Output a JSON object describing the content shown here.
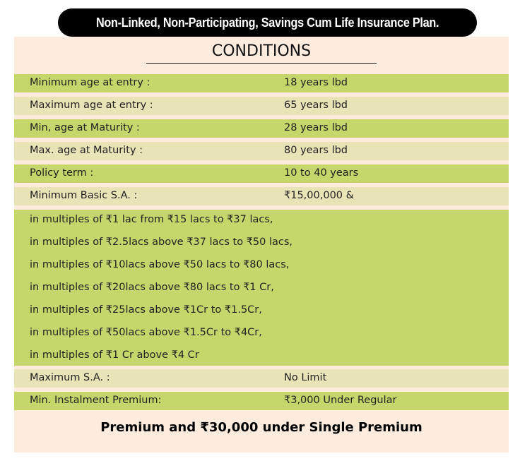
{
  "banner": "Non-Linked, Non-Participating, Savings Cum Life Insurance Plan.",
  "title": "CONDITIONS",
  "rows": [
    {
      "label": "Minimum age at entry :",
      "value": "18 years lbd"
    },
    {
      "label": "Maximum age at entry :",
      "value": "65 years lbd"
    },
    {
      "label": "Min, age at Maturity :",
      "value": "28 years lbd"
    },
    {
      "label": "Max. age at Maturity :",
      "value": "80 years lbd"
    },
    {
      "label": "Policy term :",
      "value": "10 to 40 years"
    },
    {
      "label": "Minimum Basic S.A. :",
      "value": "₹15,00,000 &"
    }
  ],
  "multiples": [
    "in multiples of ₹1 lac from ₹15 lacs to ₹37 lacs,",
    "in multiples of ₹2.5lacs above ₹37 lacs to ₹50 lacs,",
    "in multiples of ₹10lacs above ₹50 lacs to ₹80 lacs,",
    "in multiples of ₹20lacs above ₹80 lacs to ₹1 Cr,",
    "in multiples of ₹25lacs above ₹1Cr to ₹1.5Cr,",
    "in multiples of ₹50lacs above ₹1.5Cr to ₹4Cr,",
    "in multiples of ₹1 Cr above ₹4 Cr"
  ],
  "rows2": [
    {
      "label": "Maximum S.A. :",
      "value": "No Limit"
    },
    {
      "label": "Min. Instalment Premium:",
      "value": "₹3,000 Under Regular"
    }
  ],
  "footer": "Premium and ₹30,000 under Single Premium",
  "colors": {
    "green": "#c5d76a",
    "pale": "#e8e4b8",
    "background": "#fdebdd",
    "banner": "#000000"
  }
}
